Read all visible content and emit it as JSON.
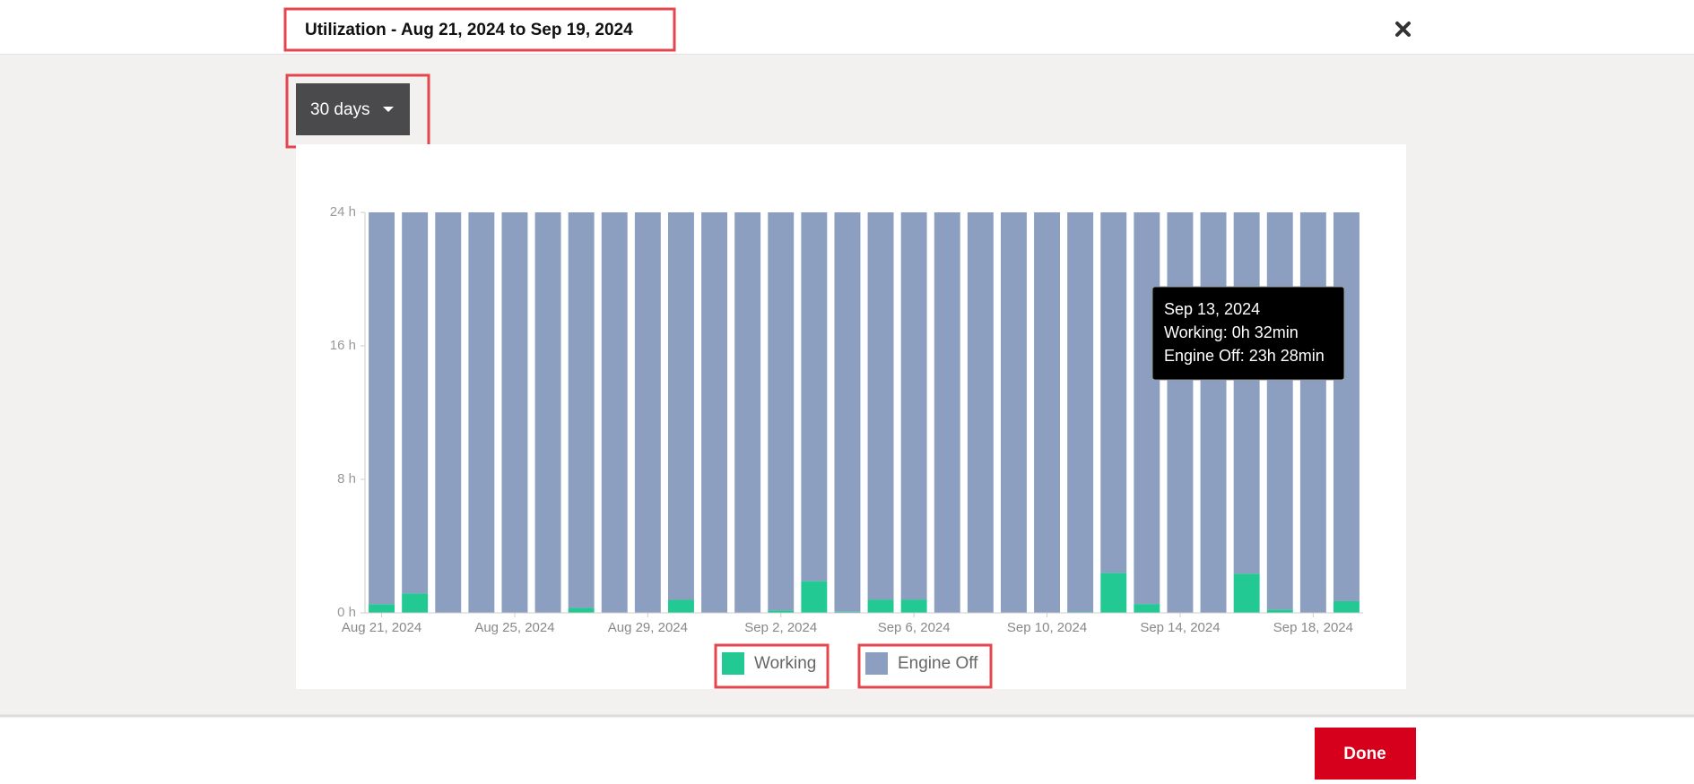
{
  "header": {
    "title": "Utilization - Aug 21, 2024 to Sep 19, 2024"
  },
  "range_select": {
    "label": "30 days"
  },
  "footer": {
    "done": "Done"
  },
  "chart_data": {
    "type": "bar",
    "stacked": true,
    "categories": [
      "Aug 21, 2024",
      null,
      null,
      null,
      "Aug 25, 2024",
      null,
      null,
      null,
      "Aug 29, 2024",
      null,
      null,
      null,
      "Sep 2, 2024",
      null,
      null,
      null,
      "Sep 6, 2024",
      null,
      null,
      null,
      "Sep 10, 2024",
      null,
      null,
      null,
      "Sep 14, 2024",
      null,
      null,
      null,
      "Sep 18, 2024",
      null
    ],
    "series": [
      {
        "name": "Working",
        "color": "#22c993",
        "values": [
          0.52,
          1.16,
          0,
          0,
          0,
          0,
          0.3,
          0,
          0,
          0.78,
          0,
          0,
          0.15,
          1.9,
          0.07,
          0.8,
          0.8,
          0,
          0,
          0,
          0,
          0.05,
          2.4,
          0.53,
          0,
          0,
          2.35,
          0.2,
          0,
          0.7
        ]
      },
      {
        "name": "Engine Off",
        "color": "#8c9fc0",
        "values": [
          23.48,
          22.84,
          24,
          24,
          24,
          24,
          23.7,
          24,
          24,
          23.22,
          24,
          24,
          23.85,
          22.1,
          23.93,
          23.2,
          23.2,
          24,
          24,
          24,
          24,
          23.95,
          21.6,
          23.47,
          24,
          24,
          21.65,
          23.8,
          24,
          23.3
        ]
      }
    ],
    "ylim": [
      0,
      24
    ],
    "yticks": [
      {
        "value": 0,
        "label": "0 h"
      },
      {
        "value": 8,
        "label": "8 h"
      },
      {
        "value": 16,
        "label": "16 h"
      },
      {
        "value": 24,
        "label": "24 h"
      }
    ],
    "legend": "bottom",
    "tooltip": {
      "title": "Sep 13, 2024",
      "lines": [
        "Working: 0h 32min",
        "Engine Off: 23h 28min"
      ]
    }
  }
}
